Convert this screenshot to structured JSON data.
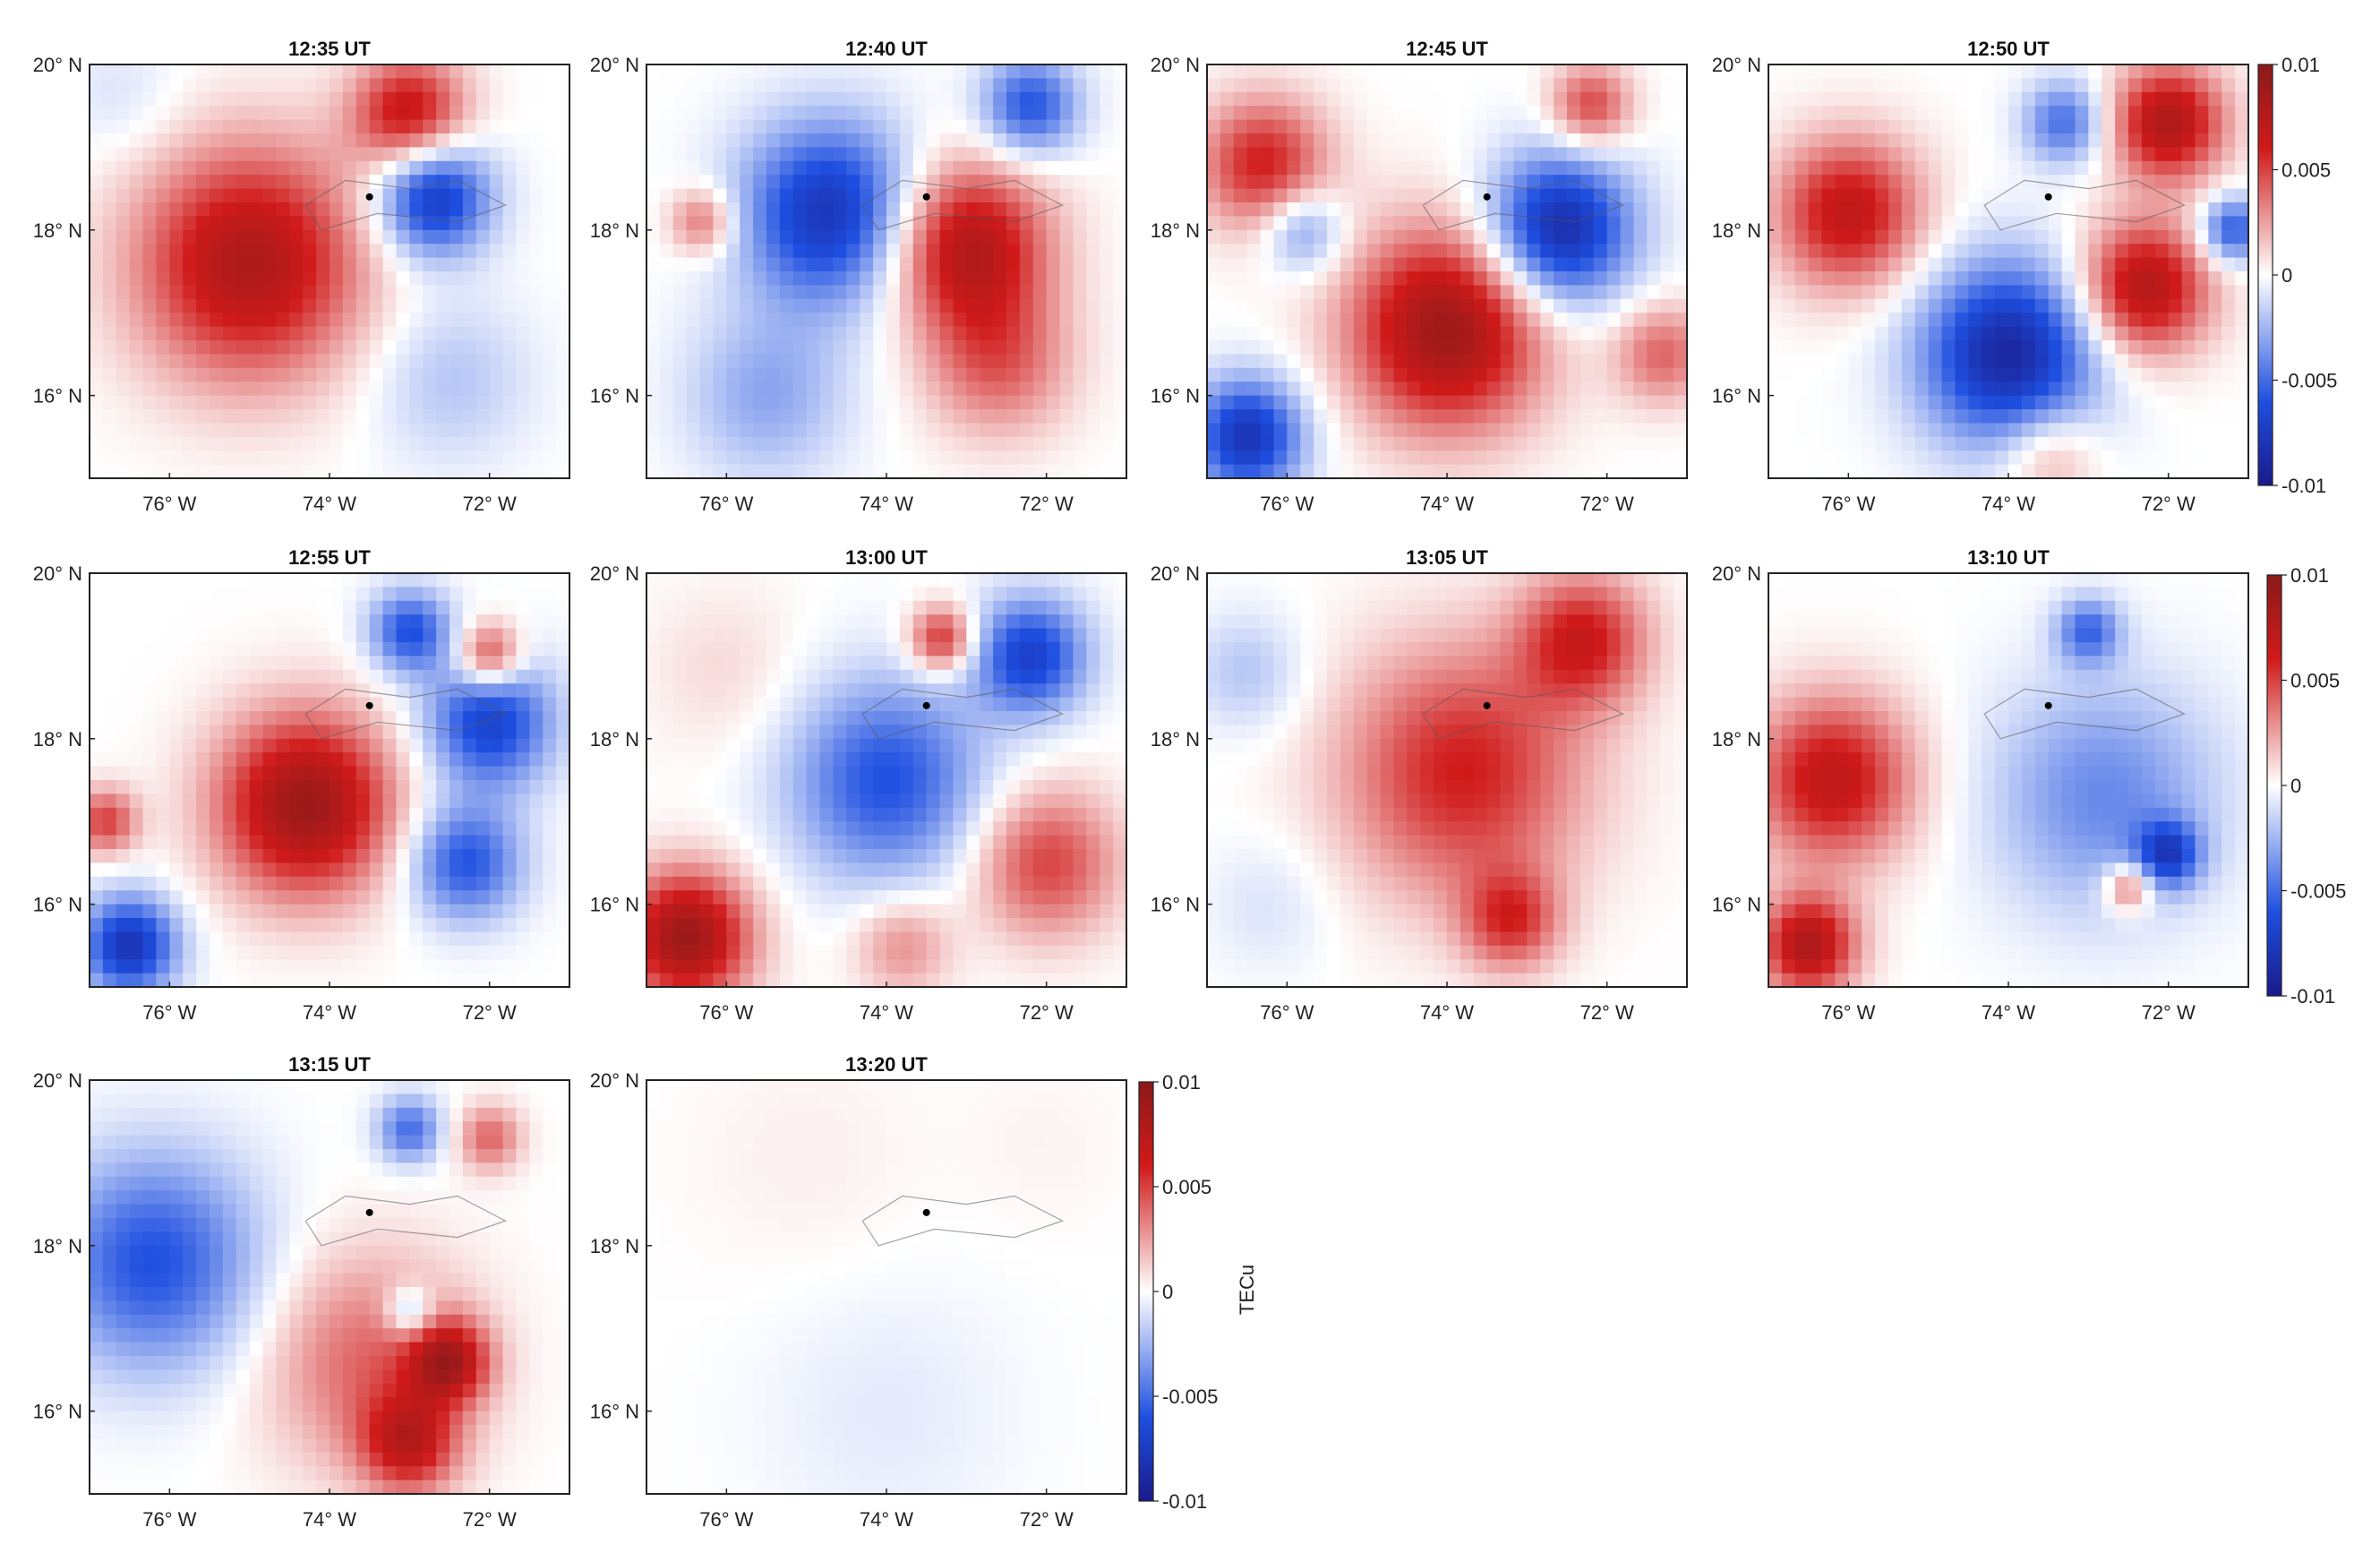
{
  "figure": {
    "unit_label": "TECu",
    "y_ticks": [
      "20° N",
      "18° N",
      "16° N"
    ],
    "x_ticks": [
      "76° W",
      "74° W",
      "72° W"
    ],
    "colorbar_ticks": [
      "0.01",
      "0.005",
      "0",
      "-0.005",
      "-0.01"
    ],
    "colors": {
      "red": "#c0101a",
      "dark_red": "#8b1a1a",
      "blue": "#1d3fd0",
      "dark_blue": "#1a1a8a",
      "white": "#ffffff",
      "frame": "#222222"
    }
  },
  "chart_data": [
    {
      "type": "heatmap",
      "title": "12:35 UT",
      "xlabel": "",
      "ylabel": "",
      "xlim": [
        -77,
        -71
      ],
      "ylim": [
        15,
        20
      ],
      "clim": [
        -0.01,
        0.01
      ],
      "station": {
        "lon": -73.5,
        "lat": 18.4
      },
      "blobs": [
        {
          "lon": -75.0,
          "lat": 17.6,
          "v": 0.008,
          "r": 1.4
        },
        {
          "lon": -73.0,
          "lat": 19.4,
          "v": 0.007,
          "r": 0.7
        },
        {
          "lon": -72.7,
          "lat": 18.4,
          "v": -0.008,
          "r": 0.7
        },
        {
          "lon": -72.5,
          "lat": 16.2,
          "v": -0.002,
          "r": 1.0
        },
        {
          "lon": -76.6,
          "lat": 19.6,
          "v": -0.001,
          "r": 0.8
        }
      ]
    },
    {
      "type": "heatmap",
      "title": "12:40 UT",
      "xlabel": "",
      "ylabel": "",
      "xlim": [
        -77,
        -71
      ],
      "ylim": [
        15,
        20
      ],
      "clim": [
        -0.01,
        0.01
      ],
      "station": {
        "lon": -73.5,
        "lat": 18.4
      },
      "blobs": [
        {
          "lon": -74.7,
          "lat": 18.2,
          "v": -0.008,
          "r": 1.1
        },
        {
          "lon": -73.0,
          "lat": 17.8,
          "v": 0.008,
          "r": 1.0
        },
        {
          "lon": -72.6,
          "lat": 16.4,
          "v": 0.004,
          "r": 0.9
        },
        {
          "lon": -72.2,
          "lat": 19.5,
          "v": -0.006,
          "r": 0.6
        },
        {
          "lon": -76.3,
          "lat": 18.1,
          "v": 0.004,
          "r": 0.4
        },
        {
          "lon": -75.5,
          "lat": 16.0,
          "v": -0.003,
          "r": 1.0
        }
      ]
    },
    {
      "type": "heatmap",
      "title": "12:45 UT",
      "xlabel": "",
      "ylabel": "",
      "xlim": [
        -77,
        -71
      ],
      "ylim": [
        15,
        20
      ],
      "clim": [
        -0.01,
        0.01
      ],
      "station": {
        "lon": -73.5,
        "lat": 18.4
      },
      "blobs": [
        {
          "lon": -74.0,
          "lat": 16.8,
          "v": 0.009,
          "r": 1.2
        },
        {
          "lon": -72.6,
          "lat": 18.0,
          "v": -0.009,
          "r": 0.9
        },
        {
          "lon": -76.3,
          "lat": 18.8,
          "v": 0.006,
          "r": 0.8
        },
        {
          "lon": -75.8,
          "lat": 18.0,
          "v": -0.004,
          "r": 0.5
        },
        {
          "lon": -76.5,
          "lat": 15.5,
          "v": -0.008,
          "r": 0.7
        },
        {
          "lon": -72.2,
          "lat": 19.5,
          "v": 0.005,
          "r": 0.5
        },
        {
          "lon": -71.3,
          "lat": 16.5,
          "v": 0.004,
          "r": 0.6
        }
      ]
    },
    {
      "type": "heatmap",
      "title": "12:50 UT",
      "xlabel": "",
      "ylabel": "",
      "xlim": [
        -77,
        -71
      ],
      "ylim": [
        15,
        20
      ],
      "clim": [
        -0.01,
        0.01
      ],
      "station": {
        "lon": -73.5,
        "lat": 18.4
      },
      "blobs": [
        {
          "lon": -76.0,
          "lat": 18.2,
          "v": 0.007,
          "r": 0.9
        },
        {
          "lon": -74.0,
          "lat": 16.5,
          "v": -0.009,
          "r": 1.1
        },
        {
          "lon": -72.3,
          "lat": 17.3,
          "v": 0.008,
          "r": 0.8
        },
        {
          "lon": -72.0,
          "lat": 19.3,
          "v": 0.008,
          "r": 0.7
        },
        {
          "lon": -73.3,
          "lat": 19.3,
          "v": -0.005,
          "r": 0.5
        },
        {
          "lon": -71.2,
          "lat": 18.0,
          "v": -0.006,
          "r": 0.4
        },
        {
          "lon": -73.5,
          "lat": 15.3,
          "v": 0.003,
          "r": 0.6
        }
      ]
    },
    {
      "type": "heatmap",
      "title": "12:55 UT",
      "xlabel": "",
      "ylabel": "",
      "xlim": [
        -77,
        -71
      ],
      "ylim": [
        15,
        20
      ],
      "clim": [
        -0.01,
        0.01
      ],
      "station": {
        "lon": -73.5,
        "lat": 18.4
      },
      "blobs": [
        {
          "lon": -74.3,
          "lat": 17.2,
          "v": 0.009,
          "r": 1.1
        },
        {
          "lon": -76.5,
          "lat": 15.5,
          "v": -0.008,
          "r": 0.6
        },
        {
          "lon": -72.0,
          "lat": 18.2,
          "v": -0.007,
          "r": 0.8
        },
        {
          "lon": -72.3,
          "lat": 16.5,
          "v": -0.006,
          "r": 0.7
        },
        {
          "lon": -73.0,
          "lat": 19.3,
          "v": -0.006,
          "r": 0.5
        },
        {
          "lon": -72.0,
          "lat": 19.0,
          "v": 0.006,
          "r": 0.4
        },
        {
          "lon": -76.8,
          "lat": 17.0,
          "v": 0.005,
          "r": 0.4
        }
      ]
    },
    {
      "type": "heatmap",
      "title": "13:00 UT",
      "xlabel": "",
      "ylabel": "",
      "xlim": [
        -77,
        -71
      ],
      "ylim": [
        15,
        20
      ],
      "clim": [
        -0.01,
        0.01
      ],
      "station": {
        "lon": -73.5,
        "lat": 18.4
      },
      "blobs": [
        {
          "lon": -74.0,
          "lat": 17.5,
          "v": -0.006,
          "r": 1.2
        },
        {
          "lon": -76.5,
          "lat": 15.6,
          "v": 0.009,
          "r": 0.8
        },
        {
          "lon": -72.0,
          "lat": 16.5,
          "v": 0.005,
          "r": 0.9
        },
        {
          "lon": -72.2,
          "lat": 19.0,
          "v": -0.007,
          "r": 0.7
        },
        {
          "lon": -73.3,
          "lat": 19.2,
          "v": 0.006,
          "r": 0.4
        },
        {
          "lon": -73.8,
          "lat": 15.5,
          "v": 0.003,
          "r": 0.6
        },
        {
          "lon": -76.0,
          "lat": 18.8,
          "v": 0.001,
          "r": 1.0
        }
      ]
    },
    {
      "type": "heatmap",
      "title": "13:05 UT",
      "xlabel": "",
      "ylabel": "",
      "xlim": [
        -77,
        -71
      ],
      "ylim": [
        15,
        20
      ],
      "clim": [
        -0.01,
        0.01
      ],
      "station": {
        "lon": -73.5,
        "lat": 18.4
      },
      "blobs": [
        {
          "lon": -73.8,
          "lat": 17.6,
          "v": 0.006,
          "r": 1.5
        },
        {
          "lon": -72.3,
          "lat": 19.2,
          "v": 0.006,
          "r": 0.8
        },
        {
          "lon": -76.5,
          "lat": 18.8,
          "v": -0.002,
          "r": 0.7
        },
        {
          "lon": -76.2,
          "lat": 16.0,
          "v": -0.001,
          "r": 0.8
        },
        {
          "lon": -73.2,
          "lat": 15.8,
          "v": 0.005,
          "r": 0.6
        }
      ]
    },
    {
      "type": "heatmap",
      "title": "13:10 UT",
      "xlabel": "",
      "ylabel": "",
      "xlim": [
        -77,
        -71
      ],
      "ylim": [
        15,
        20
      ],
      "clim": [
        -0.01,
        0.01
      ],
      "station": {
        "lon": -73.5,
        "lat": 18.4
      },
      "blobs": [
        {
          "lon": -76.2,
          "lat": 17.5,
          "v": 0.007,
          "r": 1.0
        },
        {
          "lon": -72.8,
          "lat": 17.3,
          "v": -0.004,
          "r": 1.4
        },
        {
          "lon": -72.0,
          "lat": 16.6,
          "v": -0.006,
          "r": 0.4
        },
        {
          "lon": -72.5,
          "lat": 16.2,
          "v": 0.005,
          "r": 0.3
        },
        {
          "lon": -73.0,
          "lat": 19.3,
          "v": -0.005,
          "r": 0.4
        },
        {
          "lon": -76.5,
          "lat": 15.5,
          "v": 0.008,
          "r": 0.6
        }
      ]
    },
    {
      "type": "heatmap",
      "title": "13:15 UT",
      "xlabel": "",
      "ylabel": "",
      "xlim": [
        -77,
        -71
      ],
      "ylim": [
        15,
        20
      ],
      "clim": [
        -0.01,
        0.01
      ],
      "station": {
        "lon": -73.5,
        "lat": 18.4
      },
      "blobs": [
        {
          "lon": -76.2,
          "lat": 17.8,
          "v": -0.006,
          "r": 1.3
        },
        {
          "lon": -73.5,
          "lat": 16.6,
          "v": 0.004,
          "r": 1.3
        },
        {
          "lon": -72.5,
          "lat": 16.6,
          "v": 0.007,
          "r": 0.5
        },
        {
          "lon": -73.0,
          "lat": 15.6,
          "v": 0.006,
          "r": 0.6
        },
        {
          "lon": -73.0,
          "lat": 17.2,
          "v": -0.004,
          "r": 0.3
        },
        {
          "lon": -73.0,
          "lat": 19.4,
          "v": -0.005,
          "r": 0.4
        },
        {
          "lon": -72.0,
          "lat": 19.3,
          "v": 0.004,
          "r": 0.4
        }
      ]
    },
    {
      "type": "heatmap",
      "title": "13:20 UT",
      "xlabel": "",
      "ylabel": "TECu",
      "xlim": [
        -77,
        -71
      ],
      "ylim": [
        15,
        20
      ],
      "clim": [
        -0.01,
        0.01
      ],
      "station": {
        "lon": -73.5,
        "lat": 18.4
      },
      "blobs": [
        {
          "lon": -74.0,
          "lat": 16.0,
          "v": -0.0007,
          "r": 1.6
        },
        {
          "lon": -75.0,
          "lat": 19.0,
          "v": 0.0004,
          "r": 1.5
        },
        {
          "lon": -72.0,
          "lat": 19.2,
          "v": 0.0003,
          "r": 1.0
        }
      ]
    }
  ]
}
